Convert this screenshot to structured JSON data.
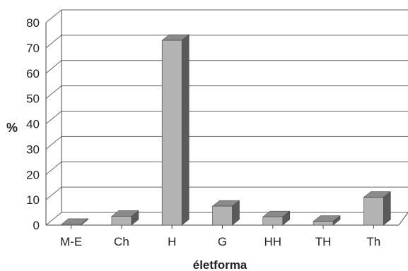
{
  "chart_data": {
    "type": "bar",
    "categories": [
      "M-E",
      "Ch",
      "H",
      "G",
      "HH",
      "TH",
      "Th"
    ],
    "values": [
      0.3,
      3.5,
      73,
      7.5,
      3.3,
      1.5,
      11
    ],
    "xlabel": "életforma",
    "ylabel": "%",
    "ylim": [
      0,
      80
    ],
    "yticks": [
      0,
      10,
      20,
      30,
      40,
      50,
      60,
      70,
      80
    ],
    "grid": true,
    "legend": "none",
    "style": "3d-column",
    "colors": {
      "bar_front": "#b3b3b3",
      "bar_side": "#5a5a5a",
      "bar_top": "#8a8a8a",
      "grid": "#666666",
      "axis": "#444444"
    }
  }
}
